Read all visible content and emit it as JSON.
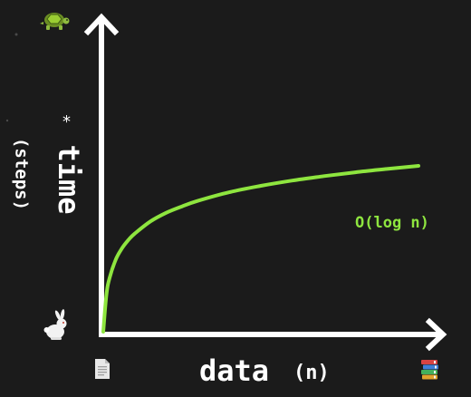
{
  "chart_data": {
    "type": "line",
    "title": "",
    "xlabel": "data",
    "xlabel_unit": "(n)",
    "ylabel": "time",
    "ylabel_unit": "(steps)",
    "ylabel_mark": "*",
    "xlim": [
      0,
      100
    ],
    "ylim": [
      0,
      100
    ],
    "grid": false,
    "series": [
      {
        "name": "O(log n)",
        "color": "#8ee53f",
        "x": [
          0,
          1,
          2,
          4,
          6,
          8,
          10,
          15,
          20,
          25,
          30,
          40,
          50,
          60,
          70,
          80,
          90,
          100
        ],
        "y": [
          0,
          13.3,
          19.4,
          26.1,
          30.2,
          33.1,
          35.4,
          39.8,
          42.9,
          45.2,
          47.2,
          50.3,
          52.6,
          54.5,
          56.1,
          57.5,
          58.7,
          59.8
        ]
      }
    ],
    "axis_icons": {
      "y_top": "turtle-icon",
      "y_bottom": "rabbit-icon",
      "x_left": "page-icon",
      "x_right": "books-icon"
    }
  }
}
